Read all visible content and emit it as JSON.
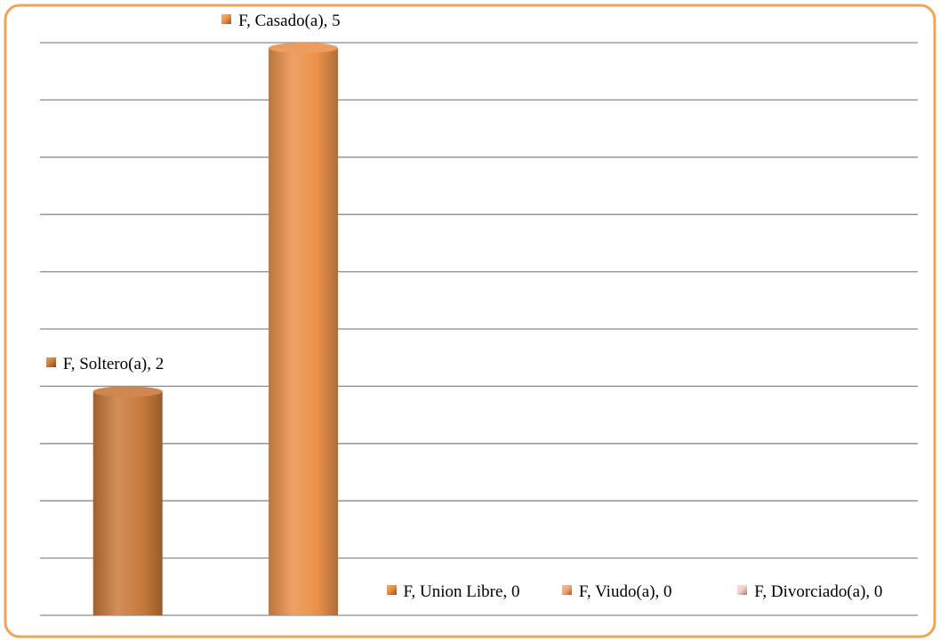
{
  "chart_data": {
    "type": "bar",
    "series": [
      {
        "name": "F",
        "values": [
          2,
          5,
          0,
          0,
          0
        ],
        "value_labels": [
          "F, Soltero(a), 2",
          "F, Casado(a), 5",
          "F, Union Libre, 0",
          "F, Viudo(a), 0",
          "F, Divorciado(a), 0"
        ],
        "colors": [
          "#c97a3a",
          "#ea914a",
          "#e8893c",
          "#eea676",
          "#f2cfc4"
        ]
      }
    ],
    "categories": [
      "Soltero(a)",
      "Casado(a)",
      "Union Libre",
      "Viudo(a)",
      "Divorciado(a)"
    ],
    "ylim": [
      0,
      5
    ],
    "yticks": [
      0,
      0.5,
      1,
      1.5,
      2,
      2.5,
      3,
      3.5,
      4,
      4.5,
      5
    ],
    "grid": true
  }
}
